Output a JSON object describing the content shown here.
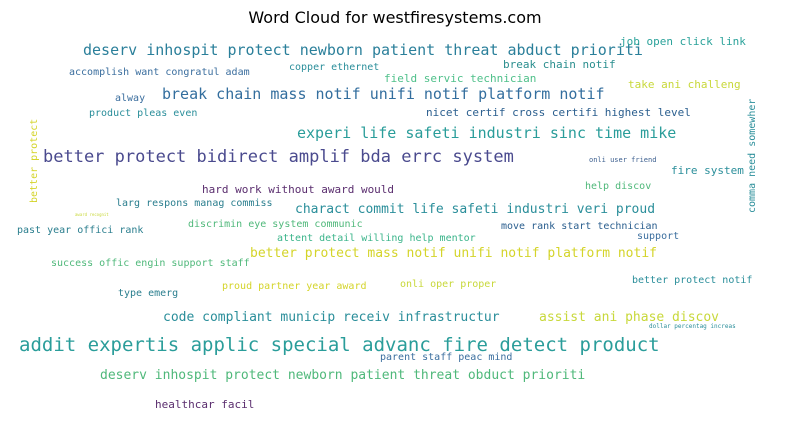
{
  "title": "Word Cloud for westfiresystems.com",
  "colors": {
    "teal": "#2a9d8f",
    "blue": "#3b6e9e",
    "indigo": "#4a4a8e",
    "purple": "#5a2d6e",
    "green": "#4fb87a",
    "yellow": "#d4d42a"
  },
  "words": {
    "w01": "deserv inhospit protect newborn patient threat abduct prioriti",
    "w02": "job open click link",
    "w03": "break chain notif",
    "w04": "accomplish want congratul adam",
    "w05": "copper ethernet",
    "w06": "field servic technician",
    "w07": "take ani challeng",
    "w08": "break chain mass notif unifi notif platform notif",
    "w09": "alway",
    "w10": "product pleas even",
    "w11": "nicet certif cross certifi highest level",
    "w12": "better protect",
    "w13": "experi life safeti industri sinc time mike",
    "w14": "comma need somewher",
    "w15": "better protect bidirect amplif bda errc system",
    "w16": "onli user friend",
    "w17": "fire system",
    "w18": "hard work without award would",
    "w19": "help discov",
    "w20": "larg respons manag commiss",
    "w21": "charact commit life safeti industri veri proud",
    "w22": "award recognit",
    "w23": "discrimin eye system communic",
    "w24": "move rank start technician",
    "w25": "past year offici rank",
    "w26": "attent detail willing help mentor",
    "w27": "support",
    "w28": "better protect mass notif unifi notif platform notif",
    "w29": "success offic engin support staff",
    "w30": "onli oper proper",
    "w31": "proud partner year award",
    "w32": "better protect notif",
    "w33": "type emerg",
    "w34": "code compliant municip receiv infrastructur",
    "w35": "assist ani phase discov",
    "w36": "dollar percentag increas",
    "w37": "addit expertis applic special advanc fire detect product",
    "w38": "parent staff peac mind",
    "w39": "deserv inhospit protect newborn patient threat obduct prioriti",
    "w40": "healthcar facil"
  }
}
